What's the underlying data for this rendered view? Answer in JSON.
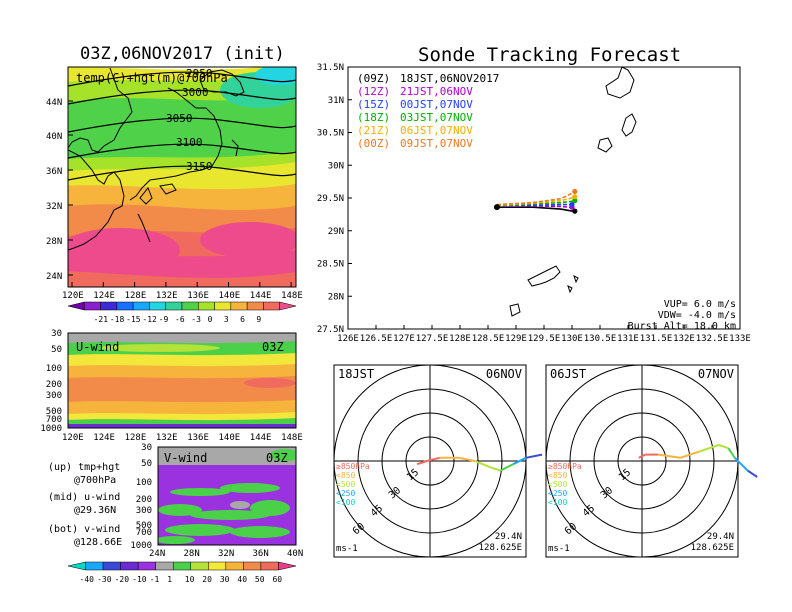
{
  "colors": {
    "temp": [
      "#6f00aa",
      "#8a1fd0",
      "#3a2ad8",
      "#1870ff",
      "#1aa7ff",
      "#22d5e0",
      "#32d29b",
      "#4fd24a",
      "#a6e22a",
      "#e8e62e",
      "#f6b43c",
      "#f28a4a",
      "#f06a5e",
      "#ee4b8c"
    ],
    "wind": [
      "#00d8c8",
      "#1aa7ff",
      "#3a4ad8",
      "#6a2bd0",
      "#9a32e0",
      "#a8a8a8",
      "#4bd04a",
      "#b4e23a",
      "#f2e73a",
      "#f6b43c",
      "#f28a4a",
      "#f06a5e",
      "#ee3c8c"
    ],
    "launch": [
      "#000000",
      "#b000d0",
      "#2040ff",
      "#00b000",
      "#f0b000",
      "#f07820"
    ]
  },
  "left": {
    "top_title": "03Z,06NOV2017 (init)",
    "map_label": "temp(C)+hgt(m)@700hPa",
    "contours": [
      "2950",
      "3000",
      "3050",
      "3100",
      "3150"
    ],
    "lat_ticks": [
      "44N",
      "40N",
      "36N",
      "32N",
      "28N",
      "24N"
    ],
    "lon_ticks": [
      "120E",
      "124E",
      "128E",
      "132E",
      "136E",
      "140E",
      "144E",
      "148E"
    ],
    "temp_levels": [
      "-21",
      "-18",
      "-15",
      "-12",
      "-9",
      "-6",
      "-3",
      "0",
      "3",
      "6",
      "9"
    ],
    "uwind_label": "U-wind",
    "uwind_time": "03Z",
    "p_ticks": [
      "30",
      "50",
      "100",
      "200",
      "300",
      "500",
      "700",
      "1000"
    ],
    "vwind_label": "V-wind",
    "vwind_time": "03Z",
    "vwind_lat_ticks": [
      "24N",
      "28N",
      "32N",
      "36N",
      "40N"
    ],
    "wind_levels": [
      "-40",
      "-30",
      "-20",
      "-10",
      "-1",
      "1",
      "10",
      "20",
      "30",
      "40",
      "50",
      "60"
    ],
    "notes": [
      {
        "a": "(up)  tmp+hgt",
        "b": "@700hPa"
      },
      {
        "a": "(mid) u-wind",
        "b": "@29.36N"
      },
      {
        "a": "(bot) v-wind",
        "b": "@128.66E"
      }
    ]
  },
  "right": {
    "title": "Sonde Tracking Forecast",
    "legend": [
      {
        "code": "(09Z)",
        "time": "18JST,06NOV2017"
      },
      {
        "code": "(12Z)",
        "time": "21JST,06NOV"
      },
      {
        "code": "(15Z)",
        "time": "00JST,07NOV"
      },
      {
        "code": "(18Z)",
        "time": "03JST,07NOV"
      },
      {
        "code": "(21Z)",
        "time": "06JST,07NOV"
      },
      {
        "code": "(00Z)",
        "time": "09JST,07NOV"
      }
    ],
    "lat_ticks": [
      "31.5N",
      "31N",
      "30.5N",
      "30N",
      "29.5N",
      "29N",
      "28.5N",
      "28N",
      "27.5N"
    ],
    "lon_ticks": [
      "126E",
      "126.5E",
      "127E",
      "127.5E",
      "128E",
      "128.5E",
      "129E",
      "129.5E",
      "130E",
      "130.5E",
      "131E",
      "131.5E",
      "132E",
      "132.5E",
      "133E"
    ],
    "params": [
      "VUP=  6.0 m/s",
      "VDW= -4.0 m/s",
      "Burst Alt= 18.0 km"
    ],
    "hodographs": [
      {
        "time": "18JST",
        "date": "06NOV"
      },
      {
        "time": "06JST",
        "date": "07NOV"
      }
    ],
    "hodo_ring_labels": [
      "15",
      "30",
      "45",
      "60"
    ],
    "hodo_levels": [
      "≥850hPa",
      "<850",
      "<500",
      "<250",
      "<100"
    ],
    "hodo_unit": "ms-1",
    "hodo_lat": "29.4N",
    "hodo_lon": "128.625E"
  },
  "chart_data": {
    "type": "line",
    "title": "Sonde Tracking Forecast",
    "launch": {
      "lat": 29.36,
      "lon": 128.66
    },
    "series": [
      {
        "name": "(09Z) 18JST,06NOV2017",
        "lon": [
          128.66,
          129.3,
          129.8,
          130.0,
          130.05
        ],
        "lat": [
          29.36,
          29.36,
          29.33,
          29.3,
          29.3
        ],
        "burst": [
          130.05,
          29.3
        ]
      },
      {
        "name": "(12Z) 21JST,06NOV",
        "lon": [
          128.66,
          129.3,
          129.8,
          129.95,
          130.0
        ],
        "lat": [
          29.37,
          29.38,
          29.37,
          29.36,
          29.36
        ],
        "burst": [
          130.0,
          29.36
        ]
      },
      {
        "name": "(15Z) 00JST,07NOV",
        "lon": [
          128.66,
          129.3,
          129.8,
          129.95,
          130.0
        ],
        "lat": [
          29.38,
          29.39,
          29.4,
          29.4,
          29.4
        ],
        "burst": [
          130.0,
          29.4
        ]
      },
      {
        "name": "(18Z) 03JST,07NOV",
        "lon": [
          128.66,
          129.3,
          129.8,
          130.0,
          130.05
        ],
        "lat": [
          29.38,
          29.41,
          29.43,
          29.45,
          29.46
        ],
        "burst": [
          130.05,
          29.46
        ]
      },
      {
        "name": "(21Z) 06JST,07NOV",
        "lon": [
          128.66,
          129.3,
          129.8,
          130.0,
          130.05
        ],
        "lat": [
          29.39,
          29.42,
          29.46,
          29.5,
          29.52
        ],
        "burst": [
          130.05,
          29.52
        ]
      },
      {
        "name": "(00Z) 09JST,07NOV",
        "lon": [
          128.66,
          129.3,
          129.8,
          129.95,
          130.05
        ],
        "lat": [
          29.4,
          29.43,
          29.49,
          29.55,
          29.6
        ],
        "burst": [
          130.05,
          29.6
        ]
      }
    ],
    "xlim": [
      126,
      133
    ],
    "ylim": [
      27.5,
      31.5
    ],
    "hodographs": [
      {
        "time": "18JST",
        "date": "06NOV",
        "u": [
          -8,
          -2,
          6,
          18,
          28,
          38,
          44,
          52,
          60,
          70
        ],
        "v": [
          -2,
          0,
          2,
          2,
          0,
          -4,
          -6,
          -2,
          2,
          4
        ]
      },
      {
        "time": "06JST",
        "date": "07NOV",
        "u": [
          -2,
          2,
          10,
          24,
          36,
          48,
          54,
          58,
          66,
          72
        ],
        "v": [
          2,
          4,
          4,
          2,
          6,
          10,
          8,
          2,
          -6,
          -10
        ]
      }
    ]
  }
}
